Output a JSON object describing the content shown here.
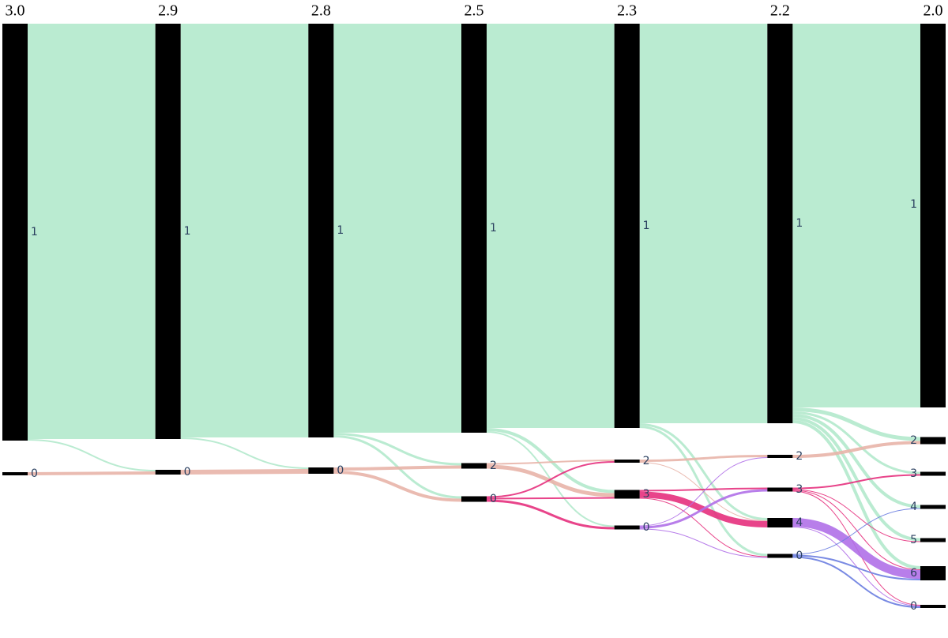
{
  "chart_data": {
    "type": "sankey",
    "columns": [
      {
        "label": "3.0",
        "nodes": [
          {
            "label": "1",
            "flows": [
              {
                "to": "1",
                "value": 526,
                "color": "#b3e9cc"
              },
              {
                "to": "0",
                "value": 2,
                "color": "#b3e9cc"
              }
            ]
          },
          {
            "label": "0",
            "flows": [
              {
                "to": "0",
                "value": 4,
                "color": "#e8b4a8"
              }
            ]
          }
        ]
      },
      {
        "label": "2.9",
        "nodes": [
          {
            "label": "1",
            "flows": [
              {
                "to": "1",
                "value": 524,
                "color": "#b3e9cc"
              },
              {
                "to": "0",
                "value": 2,
                "color": "#b3e9cc"
              }
            ]
          },
          {
            "label": "0",
            "flows": [
              {
                "to": "0",
                "value": 6,
                "color": "#e8b4a8"
              }
            ]
          }
        ]
      },
      {
        "label": "2.8",
        "nodes": [
          {
            "label": "1",
            "flows": [
              {
                "to": "1",
                "value": 518,
                "color": "#b3e9cc"
              },
              {
                "to": "2",
                "value": 3,
                "color": "#b3e9cc"
              },
              {
                "to": "0",
                "value": 3,
                "color": "#b3e9cc"
              }
            ]
          },
          {
            "label": "0",
            "flows": [
              {
                "to": "2",
                "value": 4,
                "color": "#e8b4a8"
              },
              {
                "to": "0",
                "value": 4,
                "color": "#e8b4a8"
              }
            ]
          }
        ]
      },
      {
        "label": "2.5",
        "nodes": [
          {
            "label": "1",
            "flows": [
              {
                "to": "1",
                "value": 512,
                "color": "#b3e9cc"
              },
              {
                "to": "3",
                "value": 4,
                "color": "#b3e9cc"
              },
              {
                "to": "0",
                "value": 2,
                "color": "#b3e9cc"
              }
            ]
          },
          {
            "label": "2",
            "flows": [
              {
                "to": "2",
                "value": 2,
                "color": "#e8b4a8"
              },
              {
                "to": "3",
                "value": 5,
                "color": "#e8b4a8"
              }
            ]
          },
          {
            "label": "0",
            "flows": [
              {
                "to": "2",
                "value": 2,
                "color": "#e5307d"
              },
              {
                "to": "3",
                "value": 2,
                "color": "#e5307d"
              },
              {
                "to": "0",
                "value": 3,
                "color": "#e5307d"
              }
            ]
          }
        ]
      },
      {
        "label": "2.3",
        "nodes": [
          {
            "label": "1",
            "flows": [
              {
                "to": "1",
                "value": 506,
                "color": "#b3e9cc"
              },
              {
                "to": "4",
                "value": 3,
                "color": "#b3e9cc"
              },
              {
                "to": "0",
                "value": 3,
                "color": "#b3e9cc"
              }
            ]
          },
          {
            "label": "2",
            "flows": [
              {
                "to": "2",
                "value": 3,
                "color": "#e8b4a8"
              },
              {
                "to": "4",
                "value": 1,
                "color": "#e8b4a8"
              }
            ]
          },
          {
            "label": "3",
            "flows": [
              {
                "to": "3",
                "value": 2,
                "color": "#e5307d"
              },
              {
                "to": "4",
                "value": 8,
                "color": "#e5307d"
              },
              {
                "to": "0",
                "value": 1,
                "color": "#e5307d"
              }
            ]
          },
          {
            "label": "0",
            "flows": [
              {
                "to": "2",
                "value": 1,
                "color": "#b070e8"
              },
              {
                "to": "3",
                "value": 3,
                "color": "#b070e8"
              },
              {
                "to": "0",
                "value": 1,
                "color": "#b070e8"
              }
            ]
          }
        ]
      },
      {
        "label": "2.2",
        "nodes": [
          {
            "label": "1",
            "flows": [
              {
                "to": "1",
                "value": 486,
                "color": "#b3e9cc"
              },
              {
                "to": "2",
                "value": 5,
                "color": "#b3e9cc"
              },
              {
                "to": "3",
                "value": 3,
                "color": "#b3e9cc"
              },
              {
                "to": "4",
                "value": 4,
                "color": "#b3e9cc"
              },
              {
                "to": "5",
                "value": 4,
                "color": "#b3e9cc"
              },
              {
                "to": "6",
                "value": 4,
                "color": "#b3e9cc"
              }
            ]
          },
          {
            "label": "2",
            "flows": [
              {
                "to": "2",
                "value": 4,
                "color": "#e8b4a8"
              }
            ]
          },
          {
            "label": "3",
            "flows": [
              {
                "to": "3",
                "value": 2,
                "color": "#e5307d"
              },
              {
                "to": "5",
                "value": 1,
                "color": "#e5307d"
              },
              {
                "to": "6",
                "value": 1,
                "color": "#e5307d"
              },
              {
                "to": "0",
                "value": 1,
                "color": "#e5307d"
              }
            ]
          },
          {
            "label": "4",
            "flows": [
              {
                "to": "6",
                "value": 11,
                "color": "#b070e8"
              },
              {
                "to": "0",
                "value": 1,
                "color": "#b070e8"
              }
            ]
          },
          {
            "label": "0",
            "flows": [
              {
                "to": "4",
                "value": 1,
                "color": "#6a7de0"
              },
              {
                "to": "6",
                "value": 2,
                "color": "#6a7de0"
              },
              {
                "to": "0",
                "value": 2,
                "color": "#6a7de0"
              }
            ]
          }
        ]
      },
      {
        "label": "2.0",
        "nodes": [
          {
            "label": "1"
          },
          {
            "label": "2"
          },
          {
            "label": "3"
          },
          {
            "label": "4"
          },
          {
            "label": "5"
          },
          {
            "label": "6"
          },
          {
            "label": "0"
          }
        ]
      }
    ]
  }
}
